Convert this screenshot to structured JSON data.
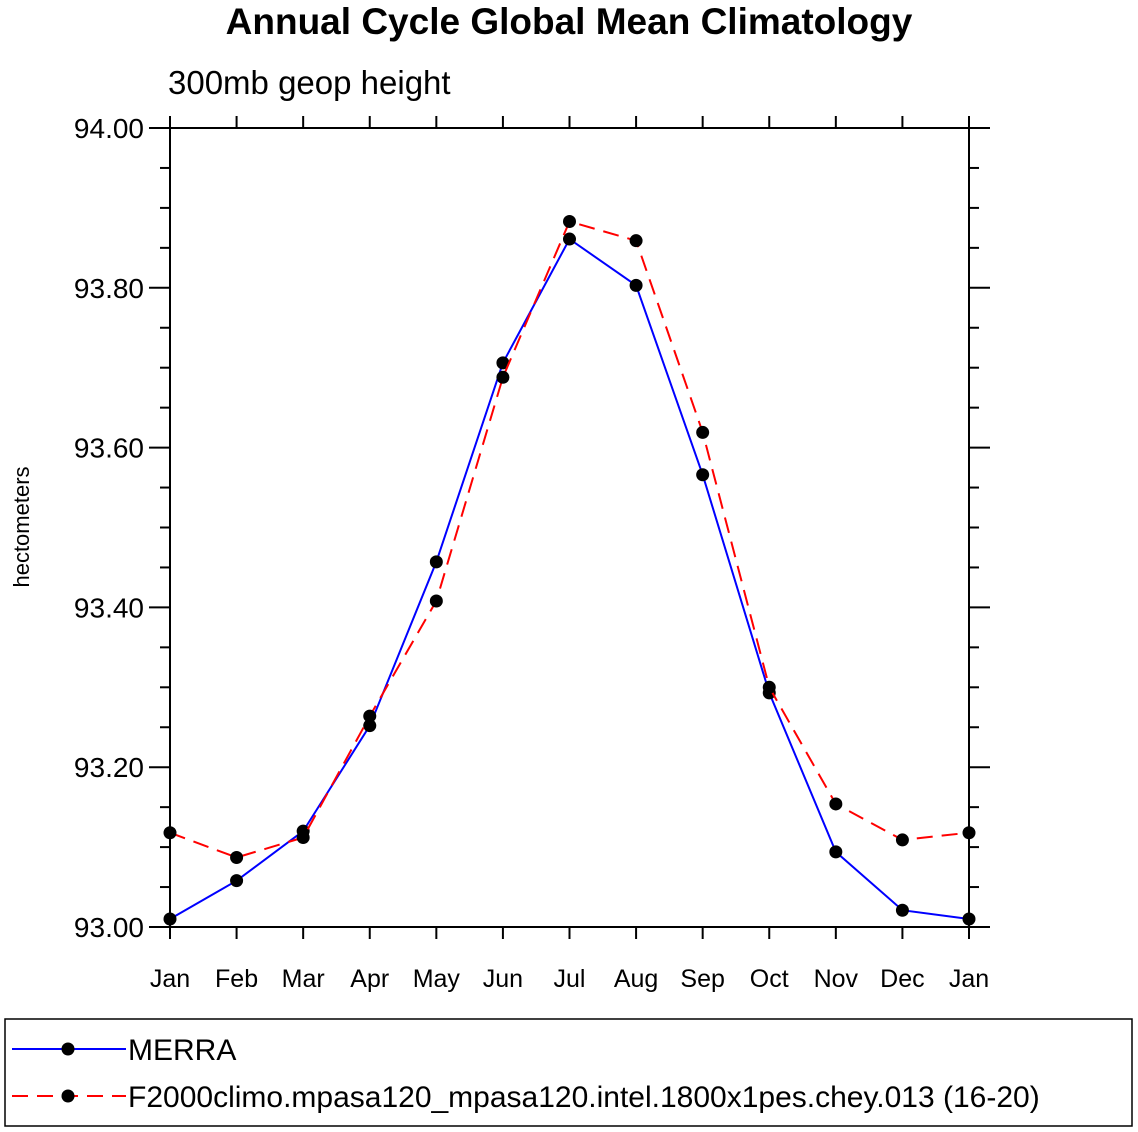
{
  "chart_data": {
    "type": "line",
    "title": "Annual Cycle Global Mean Climatology",
    "subtitle": "300mb geop height",
    "xlabel": "",
    "ylabel": "hectometers",
    "categories": [
      "Jan",
      "Feb",
      "Mar",
      "Apr",
      "May",
      "Jun",
      "Jul",
      "Aug",
      "Sep",
      "Oct",
      "Nov",
      "Dec",
      "Jan"
    ],
    "ylim": [
      93.0,
      94.0
    ],
    "yticks": [
      "93.00",
      "93.20",
      "93.40",
      "93.60",
      "93.80",
      "94.00"
    ],
    "grid": false,
    "legend": "bottom",
    "series": [
      {
        "name": "MERRA",
        "color": "#0000ff",
        "dash": "solid",
        "marker": "filled-circle",
        "values": [
          93.01,
          93.058,
          93.12,
          93.252,
          93.457,
          93.706,
          93.861,
          93.803,
          93.566,
          93.293,
          93.094,
          93.021,
          93.01
        ]
      },
      {
        "name": "F2000climo.mpasa120_mpasa120.intel.1800x1pes.chey.013 (16-20)",
        "color": "#ff0000",
        "dash": "dashed",
        "marker": "filled-circle",
        "values": [
          93.118,
          93.087,
          93.112,
          93.264,
          93.408,
          93.688,
          93.883,
          93.859,
          93.619,
          93.3,
          93.154,
          93.109,
          93.118
        ]
      }
    ]
  }
}
